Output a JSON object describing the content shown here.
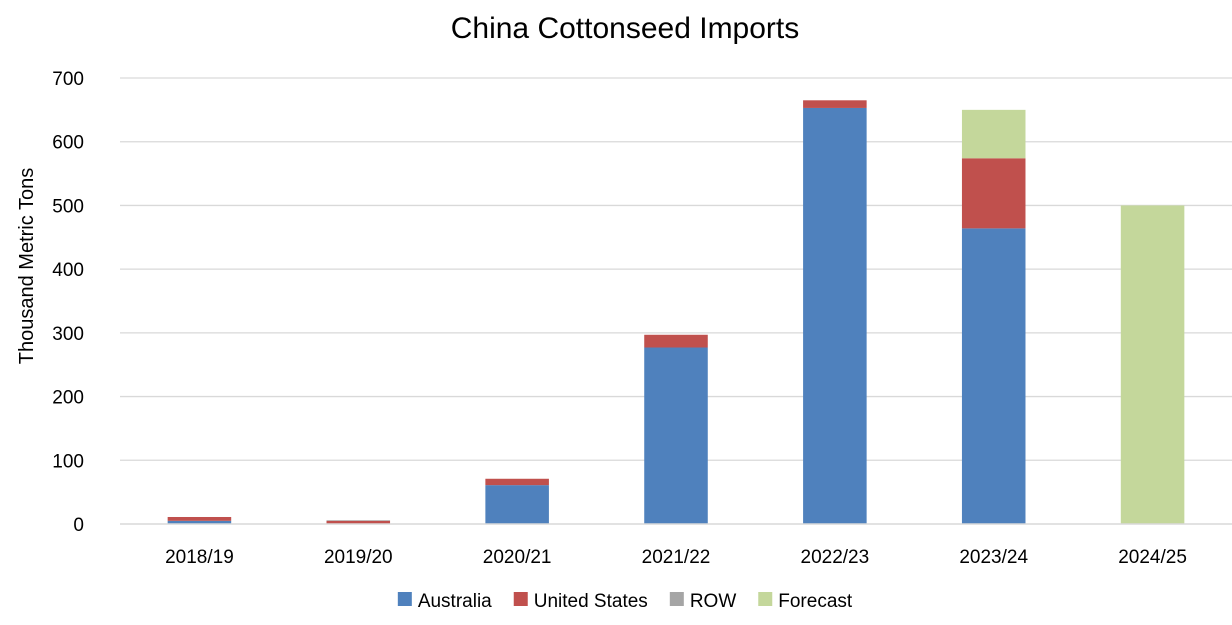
{
  "chart_data": {
    "type": "bar",
    "stacked": true,
    "title": "China Cottonseed Imports",
    "xlabel": "",
    "ylabel": "Thousand Metric Tons",
    "categories": [
      "2018/19",
      "2019/20",
      "2020/21",
      "2021/22",
      "2022/23",
      "2023/24",
      "2024/25"
    ],
    "series": [
      {
        "name": "Australia",
        "color": "#4F81BD",
        "values": [
          5,
          0,
          61,
          277,
          653,
          464,
          0
        ]
      },
      {
        "name": "United States",
        "color": "#C0504D",
        "values": [
          6,
          5,
          10,
          20,
          12,
          110,
          0
        ]
      },
      {
        "name": "ROW",
        "color": "#A5A5A5",
        "values": [
          0,
          1,
          0,
          0,
          0,
          0,
          0
        ]
      },
      {
        "name": "Forecast",
        "color": "#C4D79B",
        "values": [
          0,
          0,
          0,
          0,
          0,
          76,
          500
        ]
      }
    ],
    "ylim": [
      0,
      700
    ],
    "yticks": [
      0,
      100,
      200,
      300,
      400,
      500,
      600,
      700
    ],
    "grid": true,
    "legend": "bottom"
  }
}
